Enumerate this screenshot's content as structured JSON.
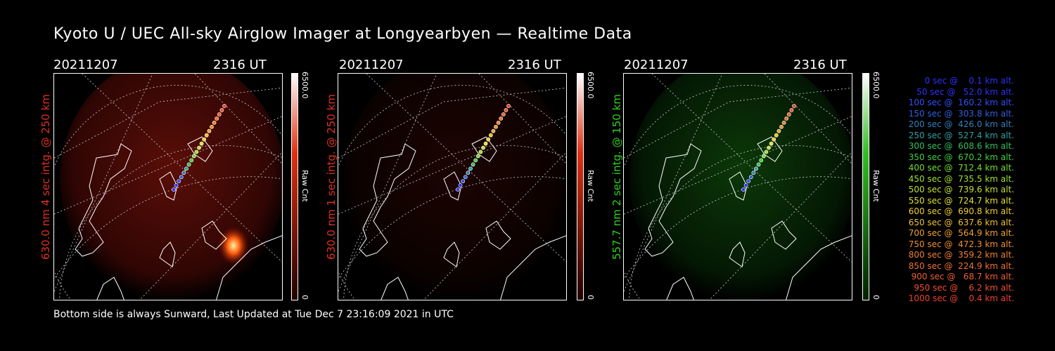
{
  "title": "Kyoto U / UEC All-sky Airglow Imager at Longyearbyen — Realtime Data",
  "footer": "Bottom side is always Sunward, Last Updated at Tue Dec  7 23:16:09 2021 in UTC",
  "panels": [
    {
      "date": "20211207",
      "time": "2316 UT",
      "ylabel": "630.0 nm 4 sec intg. @ 250 km",
      "label_color": "#e03020",
      "cbar_max": "6500.0",
      "cbar_min": "0",
      "cbar_unit": "Raw Cnt",
      "cbar_top": "#ffffff",
      "cbar_mid": "#e03010",
      "cbar_bottom": "#200000"
    },
    {
      "date": "20211207",
      "time": "2316 UT",
      "ylabel": "630.0 nm 1 sec intg. @ 250 km",
      "label_color": "#e03020",
      "cbar_max": "6500.0",
      "cbar_min": "0",
      "cbar_unit": "Raw Cnt",
      "cbar_top": "#ffffff",
      "cbar_mid": "#e03010",
      "cbar_bottom": "#200000"
    },
    {
      "date": "20211207",
      "time": "2316 UT",
      "ylabel": "557.7 nm 2 sec intg. @ 150 km",
      "label_color": "#30d020",
      "cbar_max": "6500.0",
      "cbar_min": "0",
      "cbar_unit": "Raw Cnt",
      "cbar_top": "#ffffff",
      "cbar_mid": "#30c020",
      "cbar_bottom": "#002000"
    }
  ],
  "legend": [
    {
      "text": "   0 sec @    0.1 km alt.",
      "color": "#3030ff"
    },
    {
      "text": "  50 sec @   52.0 km alt.",
      "color": "#3030ff"
    },
    {
      "text": " 100 sec @  160.2 km alt.",
      "color": "#3050ff"
    },
    {
      "text": " 150 sec @  303.8 km alt.",
      "color": "#3060e0"
    },
    {
      "text": " 200 sec @  426.0 km alt.",
      "color": "#3080c0"
    },
    {
      "text": " 250 sec @  527.4 km alt.",
      "color": "#30a0a0"
    },
    {
      "text": " 300 sec @  608.6 km alt.",
      "color": "#30c060"
    },
    {
      "text": " 350 sec @  670.2 km alt.",
      "color": "#40d040"
    },
    {
      "text": " 400 sec @  712.4 km alt.",
      "color": "#70e030"
    },
    {
      "text": " 450 sec @  735.5 km alt.",
      "color": "#a0e030"
    },
    {
      "text": " 500 sec @  739.6 km alt.",
      "color": "#c0e030"
    },
    {
      "text": " 550 sec @  724.7 km alt.",
      "color": "#e0e030"
    },
    {
      "text": " 600 sec @  690.8 km alt.",
      "color": "#f0d030"
    },
    {
      "text": " 650 sec @  637.6 km alt.",
      "color": "#f0c030"
    },
    {
      "text": " 700 sec @  564.9 km alt.",
      "color": "#f0a030"
    },
    {
      "text": " 750 sec @  472.3 km alt.",
      "color": "#f09030"
    },
    {
      "text": " 800 sec @  359.2 km alt.",
      "color": "#f08030"
    },
    {
      "text": " 850 sec @  224.9 km alt.",
      "color": "#f07030"
    },
    {
      "text": " 900 sec @   68.7 km alt.",
      "color": "#f06030"
    },
    {
      "text": " 950 sec @    6.2 km alt.",
      "color": "#f05030"
    },
    {
      "text": "1000 sec @    0.4 km alt.",
      "color": "#f04030"
    }
  ]
}
